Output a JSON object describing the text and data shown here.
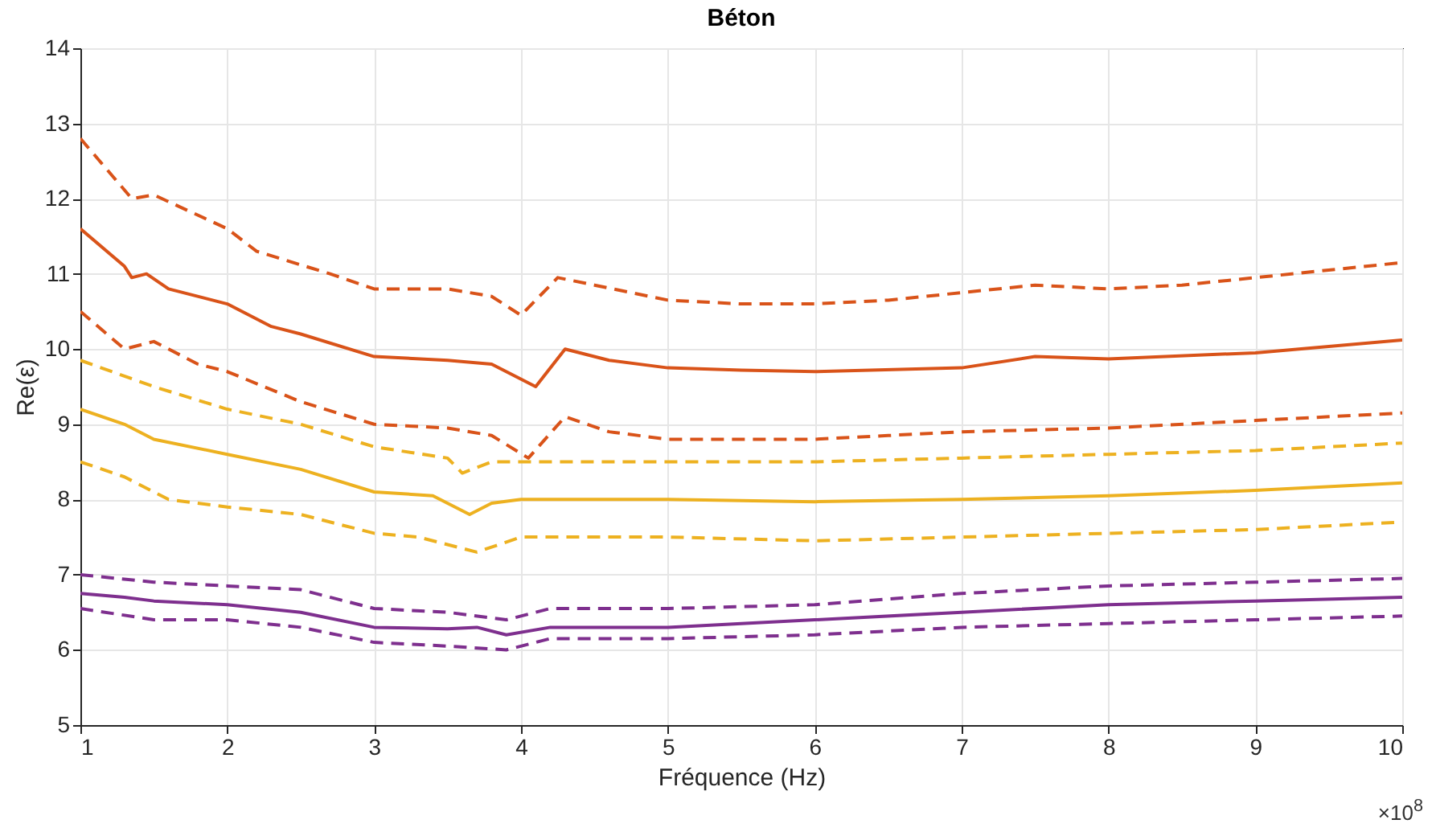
{
  "chart_data": {
    "type": "line",
    "title": "Béton",
    "xlabel": "Fréquence (Hz)",
    "ylabel": "Re(ε)",
    "annotations": [
      "×10$^{8}$"
    ],
    "xlim": [
      1,
      10
    ],
    "xticks": [
      1,
      2,
      3,
      4,
      5,
      6,
      7,
      8,
      9,
      10
    ],
    "ylim": [
      5,
      14
    ],
    "yticks": [
      5,
      6,
      7,
      8,
      9,
      10,
      11,
      12,
      13,
      14
    ],
    "grid": true,
    "marker": "none",
    "series": [
      {
        "color": "#d95319",
        "line_style": "dashed",
        "x": [
          1,
          1.35,
          1.5,
          2,
          2.2,
          2.7,
          3,
          3.5,
          3.8,
          4,
          4.25,
          4.5,
          5,
          5.5,
          6,
          6.5,
          7,
          7.5,
          8,
          8.5,
          9,
          10
        ],
        "values": [
          12.8,
          12.0,
          12.05,
          11.6,
          11.3,
          11.0,
          10.8,
          10.8,
          10.7,
          10.45,
          10.95,
          10.85,
          10.65,
          10.6,
          10.6,
          10.65,
          10.75,
          10.85,
          10.8,
          10.85,
          10.95,
          11.15
        ]
      },
      {
        "color": "#d95319",
        "line_style": "solid",
        "x": [
          1,
          1.3,
          1.35,
          1.45,
          1.6,
          2,
          2.3,
          2.5,
          3,
          3.5,
          3.8,
          4.1,
          4.3,
          4.6,
          5,
          5.5,
          6,
          7,
          7.5,
          8,
          9,
          10
        ],
        "values": [
          11.6,
          11.1,
          10.95,
          11.0,
          10.8,
          10.6,
          10.3,
          10.2,
          9.9,
          9.85,
          9.8,
          9.5,
          10.0,
          9.85,
          9.75,
          9.72,
          9.7,
          9.75,
          9.9,
          9.87,
          9.95,
          10.12
        ]
      },
      {
        "color": "#d95319",
        "line_style": "dashed",
        "x": [
          1,
          1.3,
          1.5,
          1.8,
          2,
          2.5,
          3,
          3.5,
          3.8,
          4.05,
          4.3,
          4.6,
          5,
          6,
          6.5,
          7,
          8,
          9,
          10
        ],
        "values": [
          10.5,
          10.0,
          10.1,
          9.8,
          9.7,
          9.3,
          9.0,
          8.95,
          8.85,
          8.55,
          9.1,
          8.9,
          8.8,
          8.8,
          8.85,
          8.9,
          8.95,
          9.05,
          9.15
        ]
      },
      {
        "color": "#edb120",
        "line_style": "dashed",
        "x": [
          1,
          1.5,
          2,
          2.5,
          3,
          3.5,
          3.6,
          3.8,
          4,
          5,
          6,
          7,
          8,
          9,
          10
        ],
        "values": [
          9.85,
          9.5,
          9.2,
          9.0,
          8.7,
          8.55,
          8.35,
          8.5,
          8.5,
          8.5,
          8.5,
          8.55,
          8.6,
          8.65,
          8.75
        ]
      },
      {
        "color": "#edb120",
        "line_style": "solid",
        "x": [
          1,
          1.3,
          1.5,
          2,
          2.5,
          3,
          3.4,
          3.65,
          3.8,
          4,
          5,
          6,
          7,
          8,
          9,
          10
        ],
        "values": [
          9.2,
          9.0,
          8.8,
          8.6,
          8.4,
          8.1,
          8.05,
          7.8,
          7.95,
          8.0,
          8.0,
          7.97,
          8.0,
          8.05,
          8.12,
          8.22
        ]
      },
      {
        "color": "#edb120",
        "line_style": "dashed",
        "x": [
          1,
          1.3,
          1.6,
          2,
          2.5,
          3,
          3.3,
          3.7,
          4,
          5,
          6,
          7,
          8,
          9,
          10
        ],
        "values": [
          8.5,
          8.3,
          8.0,
          7.9,
          7.8,
          7.55,
          7.5,
          7.3,
          7.5,
          7.5,
          7.45,
          7.5,
          7.55,
          7.6,
          7.7
        ]
      },
      {
        "color": "#7e2f8e",
        "line_style": "dashed",
        "x": [
          1,
          1.5,
          2,
          2.5,
          3,
          3.5,
          3.9,
          4.2,
          5,
          6,
          7,
          8,
          9,
          10
        ],
        "values": [
          7.0,
          6.9,
          6.85,
          6.8,
          6.55,
          6.5,
          6.4,
          6.55,
          6.55,
          6.6,
          6.75,
          6.85,
          6.9,
          6.95
        ]
      },
      {
        "color": "#7e2f8e",
        "line_style": "solid",
        "x": [
          1,
          1.3,
          1.5,
          2,
          2.5,
          3,
          3.5,
          3.7,
          3.9,
          4.2,
          5,
          6,
          7,
          8,
          9,
          10
        ],
        "values": [
          6.75,
          6.7,
          6.65,
          6.6,
          6.5,
          6.3,
          6.28,
          6.3,
          6.2,
          6.3,
          6.3,
          6.4,
          6.5,
          6.6,
          6.65,
          6.7
        ]
      },
      {
        "color": "#7e2f8e",
        "line_style": "dashed",
        "x": [
          1,
          1.5,
          2,
          2.5,
          3,
          3.5,
          3.9,
          4.2,
          5,
          6,
          7,
          8,
          9,
          10
        ],
        "values": [
          6.55,
          6.4,
          6.4,
          6.3,
          6.1,
          6.05,
          6.0,
          6.15,
          6.15,
          6.2,
          6.3,
          6.35,
          6.4,
          6.45
        ]
      }
    ]
  }
}
